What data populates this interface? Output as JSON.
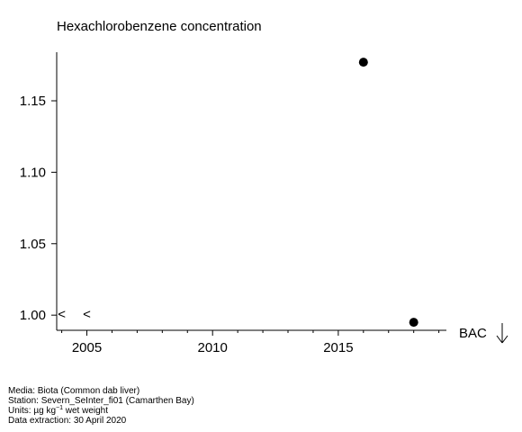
{
  "chart_data": {
    "type": "scatter",
    "title": "Hexachlorobenzene concentration",
    "xlabel": "",
    "ylabel": "",
    "xlim": [
      2003.8,
      2019.3
    ],
    "ylim": [
      0.9894,
      1.184
    ],
    "x_ticks": [
      2005,
      2010,
      2015
    ],
    "y_ticks": [
      1.0,
      1.05,
      1.1,
      1.15
    ],
    "y_tick_labels": [
      "1.00",
      "1.05",
      "1.10",
      "1.15"
    ],
    "points": [
      {
        "x": 2016,
        "y": 1.177
      },
      {
        "x": 2018,
        "y": 0.995
      }
    ],
    "less_than_markers": [
      {
        "x": 2004,
        "y": 1.0,
        "label": "<"
      },
      {
        "x": 2005,
        "y": 1.0,
        "label": "<"
      }
    ],
    "reference": {
      "label": "BAC",
      "direction": "below-range",
      "arrow": "down"
    }
  },
  "footer": {
    "media": "Media: Biota (Common dab liver)",
    "station": "Station: Severn_SeInter_fi01 (Camarthen Bay)",
    "units_prefix": "Units:  µg kg",
    "units_exp": "−1",
    "units_suffix": " wet weight",
    "extraction": "Data extraction: 30 April 2020"
  }
}
